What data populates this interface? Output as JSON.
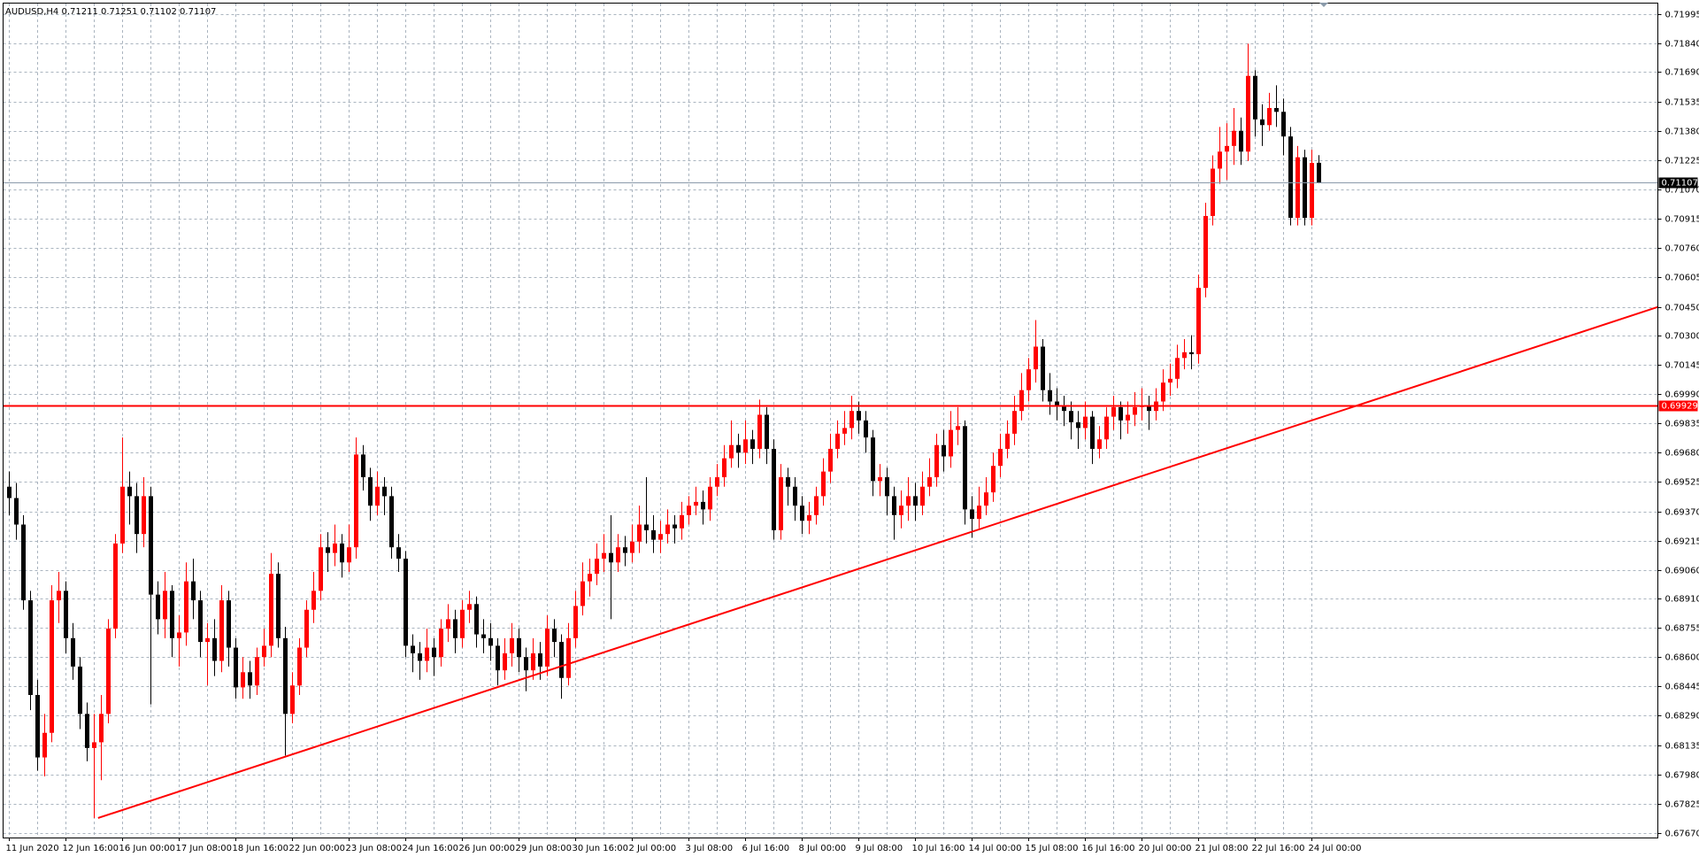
{
  "chart_data": {
    "type": "candlestick",
    "title": "AUDUSD,H4  0.71211 0.71251 0.71102 0.71107",
    "up_color": "#ff0000",
    "down_color": "#000000",
    "grid": true,
    "categories": [
      "11 Jun 2020",
      null,
      null,
      null,
      null,
      null,
      null,
      null,
      "12 Jun 16:00",
      null,
      null,
      null,
      null,
      null,
      null,
      null,
      "16 Jun 00:00",
      null,
      null,
      null,
      null,
      null,
      null,
      null,
      "17 Jun 08:00",
      null,
      null,
      null,
      null,
      null,
      null,
      null,
      "18 Jun 16:00",
      null,
      null,
      null,
      null,
      null,
      null,
      null,
      "22 Jun 00:00",
      null,
      null,
      null,
      null,
      null,
      null,
      null,
      "23 Jun 08:00",
      null,
      null,
      null,
      null,
      null,
      null,
      null,
      "24 Jun 16:00",
      null,
      null,
      null,
      null,
      null,
      null,
      null,
      "26 Jun 00:00",
      null,
      null,
      null,
      null,
      null,
      null,
      null,
      "29 Jun 08:00",
      null,
      null,
      null,
      null,
      null,
      null,
      null,
      "30 Jun 16:00",
      null,
      null,
      null,
      null,
      null,
      null,
      null,
      "2 Jul 00:00",
      null,
      null,
      null,
      null,
      null,
      null,
      null,
      "3 Jul 08:00",
      null,
      null,
      null,
      null,
      null,
      null,
      null,
      "6 Jul 16:00",
      null,
      null,
      null,
      null,
      null,
      null,
      null,
      "8 Jul 00:00",
      null,
      null,
      null,
      null,
      null,
      null,
      null,
      "9 Jul 08:00",
      null,
      null,
      null,
      null,
      null,
      null,
      null,
      "10 Jul 16:00",
      null,
      null,
      null,
      null,
      null,
      null,
      null,
      "14 Jul 00:00",
      null,
      null,
      null,
      null,
      null,
      null,
      null,
      "15 Jul 08:00",
      null,
      null,
      null,
      null,
      null,
      null,
      null,
      "16 Jul 16:00",
      null,
      null,
      null,
      null,
      null,
      null,
      null,
      "20 Jul 00:00",
      null,
      null,
      null,
      null,
      null,
      null,
      null,
      "21 Jul 08:00",
      null,
      null,
      null,
      null,
      null,
      null,
      null,
      "22 Jul 16:00",
      null,
      null,
      null,
      null,
      null,
      null,
      null,
      "24 Jul 00:00",
      null
    ],
    "open": [
      0.695,
      0.6944,
      0.693,
      0.689,
      0.684,
      0.6807,
      0.682,
      0.689,
      0.6895,
      0.687,
      0.6855,
      0.683,
      0.6812,
      0.6815,
      0.683,
      0.6875,
      0.692,
      0.695,
      0.6945,
      0.6925,
      0.6945,
      0.6893,
      0.688,
      0.6895,
      0.687,
      0.6873,
      0.69,
      0.689,
      0.6868,
      0.687,
      0.6858,
      0.689,
      0.6865,
      0.6844,
      0.6852,
      0.6845,
      0.686,
      0.6866,
      0.6904,
      0.687,
      0.683,
      0.6845,
      0.6865,
      0.6885,
      0.6895,
      0.6918,
      0.6915,
      0.692,
      0.691,
      0.6918,
      0.6967,
      0.6955,
      0.694,
      0.695,
      0.6945,
      0.6918,
      0.6912,
      0.6866,
      0.6862,
      0.6858,
      0.6865,
      0.686,
      0.6875,
      0.688,
      0.687,
      0.6885,
      0.6888,
      0.6872,
      0.687,
      0.6866,
      0.6853,
      0.6862,
      0.687,
      0.686,
      0.6853,
      0.6862,
      0.6855,
      0.6875,
      0.6868,
      0.6849,
      0.687,
      0.6887,
      0.69,
      0.6904,
      0.6912,
      0.6915,
      0.691,
      0.6918,
      0.6915,
      0.6921,
      0.693,
      0.6927,
      0.6922,
      0.6925,
      0.693,
      0.6928,
      0.6935,
      0.694,
      0.6942,
      0.6938,
      0.695,
      0.6955,
      0.6965,
      0.6972,
      0.6968,
      0.6975,
      0.697,
      0.6988,
      0.697,
      0.6927,
      0.6955,
      0.695,
      0.694,
      0.6932,
      0.6935,
      0.6945,
      0.6958,
      0.697,
      0.6978,
      0.6981,
      0.699,
      0.6985,
      0.6976,
      0.6953,
      0.6955,
      0.6945,
      0.6935,
      0.694,
      0.6945,
      0.694,
      0.695,
      0.6955,
      0.6972,
      0.6966,
      0.698,
      0.6982,
      0.6938,
      0.6933,
      0.694,
      0.6947,
      0.6961,
      0.697,
      0.6978,
      0.699,
      0.7001,
      0.7012,
      0.7024,
      0.7001,
      0.6995,
      0.6993,
      0.699,
      0.6984,
      0.6981,
      0.6987,
      0.697,
      0.6975,
      0.6987,
      0.6992,
      0.6985,
      0.6988,
      0.6992,
      0.6993,
      0.699,
      0.6995,
      0.7005,
      0.7007,
      0.7018,
      0.7021,
      0.702,
      0.7055,
      0.7093,
      0.7118,
      0.7127,
      0.713,
      0.7138,
      0.7127,
      0.7167,
      0.7144,
      0.7141,
      0.715,
      0.7148,
      0.7135,
      0.7092,
      0.7124,
      0.7092,
      0.71211
    ],
    "high": [
      0.6958,
      0.6952,
      0.6935,
      0.6895,
      0.6848,
      0.683,
      0.6898,
      0.6905,
      0.69,
      0.6878,
      0.686,
      0.6836,
      0.683,
      0.684,
      0.688,
      0.6925,
      0.6976,
      0.6958,
      0.6952,
      0.6955,
      0.695,
      0.69,
      0.6905,
      0.6898,
      0.6882,
      0.691,
      0.6912,
      0.6895,
      0.6878,
      0.688,
      0.6898,
      0.6895,
      0.687,
      0.686,
      0.6858,
      0.6865,
      0.6875,
      0.6915,
      0.691,
      0.6876,
      0.6852,
      0.687,
      0.689,
      0.6905,
      0.6925,
      0.6926,
      0.693,
      0.6925,
      0.693,
      0.6976,
      0.6972,
      0.696,
      0.6958,
      0.6955,
      0.695,
      0.6925,
      0.6916,
      0.6872,
      0.6868,
      0.6875,
      0.687,
      0.688,
      0.6888,
      0.6885,
      0.689,
      0.6895,
      0.6892,
      0.688,
      0.6878,
      0.687,
      0.687,
      0.6878,
      0.6875,
      0.6865,
      0.687,
      0.6868,
      0.6882,
      0.688,
      0.6872,
      0.6878,
      0.6895,
      0.691,
      0.6912,
      0.692,
      0.6925,
      0.6935,
      0.6925,
      0.6924,
      0.693,
      0.694,
      0.6955,
      0.6935,
      0.6932,
      0.6938,
      0.6935,
      0.6942,
      0.6945,
      0.695,
      0.6948,
      0.6955,
      0.6962,
      0.6972,
      0.6985,
      0.6978,
      0.6985,
      0.698,
      0.6996,
      0.6992,
      0.6975,
      0.6962,
      0.696,
      0.6955,
      0.6945,
      0.6942,
      0.695,
      0.6965,
      0.6978,
      0.6985,
      0.699,
      0.6998,
      0.6995,
      0.699,
      0.698,
      0.6962,
      0.696,
      0.695,
      0.6948,
      0.6955,
      0.6952,
      0.6958,
      0.6965,
      0.6978,
      0.698,
      0.699,
      0.6992,
      0.6985,
      0.6945,
      0.695,
      0.6955,
      0.6968,
      0.6978,
      0.6985,
      0.6998,
      0.701,
      0.7018,
      0.7038,
      0.7028,
      0.701,
      0.7002,
      0.6998,
      0.6995,
      0.699,
      0.6995,
      0.699,
      0.6982,
      0.6992,
      0.6998,
      0.6995,
      0.6995,
      0.7,
      0.7002,
      0.6998,
      0.7002,
      0.7012,
      0.7015,
      0.7025,
      0.7028,
      0.703,
      0.7062,
      0.71,
      0.7125,
      0.714,
      0.7142,
      0.715,
      0.7145,
      0.7184,
      0.717,
      0.7152,
      0.7158,
      0.7162,
      0.7155,
      0.714,
      0.713,
      0.7128,
      0.7128,
      0.71251
    ],
    "low": [
      0.6935,
      0.6922,
      0.6885,
      0.6832,
      0.68,
      0.6797,
      0.6815,
      0.6878,
      0.6862,
      0.6848,
      0.6822,
      0.6805,
      0.6775,
      0.6795,
      0.6825,
      0.687,
      0.6915,
      0.693,
      0.6915,
      0.6918,
      0.6835,
      0.6872,
      0.687,
      0.686,
      0.6855,
      0.6866,
      0.688,
      0.686,
      0.6845,
      0.685,
      0.6852,
      0.6855,
      0.6838,
      0.6838,
      0.6838,
      0.684,
      0.6855,
      0.686,
      0.6865,
      0.6808,
      0.6825,
      0.684,
      0.686,
      0.6878,
      0.689,
      0.6905,
      0.6908,
      0.6902,
      0.6905,
      0.6912,
      0.6948,
      0.6932,
      0.6935,
      0.6935,
      0.6912,
      0.6905,
      0.686,
      0.6852,
      0.6848,
      0.6852,
      0.685,
      0.6855,
      0.6868,
      0.6862,
      0.6865,
      0.6878,
      0.6865,
      0.6862,
      0.6858,
      0.6845,
      0.6848,
      0.6855,
      0.6852,
      0.6842,
      0.6848,
      0.6848,
      0.685,
      0.686,
      0.6838,
      0.6845,
      0.6865,
      0.6882,
      0.6892,
      0.6898,
      0.6905,
      0.688,
      0.6905,
      0.6908,
      0.691,
      0.6915,
      0.692,
      0.6915,
      0.6915,
      0.692,
      0.692,
      0.6922,
      0.693,
      0.6935,
      0.693,
      0.6932,
      0.6945,
      0.695,
      0.696,
      0.696,
      0.6962,
      0.6962,
      0.6965,
      0.6962,
      0.6922,
      0.6922,
      0.694,
      0.6932,
      0.6925,
      0.6925,
      0.693,
      0.694,
      0.6952,
      0.6965,
      0.6972,
      0.6975,
      0.6978,
      0.6968,
      0.6945,
      0.6945,
      0.6935,
      0.6922,
      0.6928,
      0.6932,
      0.6932,
      0.6935,
      0.6945,
      0.695,
      0.6958,
      0.696,
      0.6972,
      0.693,
      0.6923,
      0.6928,
      0.6935,
      0.6942,
      0.6955,
      0.6965,
      0.6972,
      0.6985,
      0.6995,
      0.7005,
      0.6995,
      0.6988,
      0.6985,
      0.6982,
      0.6975,
      0.697,
      0.6975,
      0.6962,
      0.6965,
      0.697,
      0.698,
      0.6975,
      0.6978,
      0.6982,
      0.6985,
      0.698,
      0.6985,
      0.699,
      0.6998,
      0.7002,
      0.7012,
      0.7012,
      0.7015,
      0.705,
      0.7088,
      0.711,
      0.7112,
      0.712,
      0.712,
      0.7122,
      0.7135,
      0.713,
      0.7138,
      0.714,
      0.7125,
      0.7088,
      0.7088,
      0.7088,
      0.7088,
      0.71102
    ],
    "close": [
      0.6944,
      0.693,
      0.689,
      0.684,
      0.6807,
      0.682,
      0.689,
      0.6895,
      0.687,
      0.6855,
      0.683,
      0.6812,
      0.6815,
      0.683,
      0.6875,
      0.692,
      0.695,
      0.6945,
      0.6925,
      0.6945,
      0.6893,
      0.688,
      0.6895,
      0.687,
      0.6873,
      0.69,
      0.689,
      0.6868,
      0.687,
      0.6858,
      0.689,
      0.6865,
      0.6844,
      0.6852,
      0.6845,
      0.686,
      0.6866,
      0.6904,
      0.687,
      0.683,
      0.6845,
      0.6865,
      0.6885,
      0.6895,
      0.6918,
      0.6915,
      0.692,
      0.691,
      0.6918,
      0.6967,
      0.6955,
      0.694,
      0.695,
      0.6945,
      0.6918,
      0.6912,
      0.6866,
      0.6862,
      0.6858,
      0.6865,
      0.686,
      0.6875,
      0.688,
      0.687,
      0.6885,
      0.6888,
      0.6872,
      0.687,
      0.6866,
      0.6853,
      0.6862,
      0.687,
      0.686,
      0.6853,
      0.6862,
      0.6855,
      0.6875,
      0.6868,
      0.6849,
      0.687,
      0.6887,
      0.69,
      0.6904,
      0.6912,
      0.6915,
      0.691,
      0.6918,
      0.6915,
      0.6921,
      0.693,
      0.6927,
      0.6922,
      0.6925,
      0.693,
      0.6928,
      0.6935,
      0.694,
      0.6942,
      0.6938,
      0.695,
      0.6955,
      0.6965,
      0.6972,
      0.6968,
      0.6975,
      0.697,
      0.6988,
      0.697,
      0.6927,
      0.6955,
      0.695,
      0.694,
      0.6932,
      0.6935,
      0.6945,
      0.6958,
      0.697,
      0.6978,
      0.6981,
      0.699,
      0.6985,
      0.6976,
      0.6953,
      0.6955,
      0.6945,
      0.6935,
      0.694,
      0.6945,
      0.694,
      0.695,
      0.6955,
      0.6972,
      0.6966,
      0.698,
      0.6982,
      0.6938,
      0.6933,
      0.694,
      0.6947,
      0.6961,
      0.697,
      0.6978,
      0.699,
      0.7001,
      0.7012,
      0.7024,
      0.7001,
      0.6995,
      0.6993,
      0.699,
      0.6984,
      0.6981,
      0.6987,
      0.697,
      0.6975,
      0.6987,
      0.6992,
      0.6985,
      0.6988,
      0.6992,
      0.6993,
      0.699,
      0.6995,
      0.7005,
      0.7007,
      0.7018,
      0.7021,
      0.702,
      0.7055,
      0.7093,
      0.7118,
      0.7127,
      0.713,
      0.7138,
      0.7127,
      0.7167,
      0.7144,
      0.7141,
      0.715,
      0.7148,
      0.7135,
      0.7092,
      0.7124,
      0.7092,
      0.7121,
      0.71107
    ],
    "ylim": [
      0.67647,
      0.72052
    ],
    "yticks": [
      {
        "value": 0.6767,
        "label": "0.67670"
      },
      0.67825,
      {
        "value": 0.6798,
        "label": "0.67980"
      },
      0.68135,
      {
        "value": 0.6829,
        "label": "0.68290"
      },
      0.68445,
      {
        "value": 0.686,
        "label": "0.68600"
      },
      0.68755,
      {
        "value": 0.6891,
        "label": "0.68910"
      },
      {
        "value": 0.6906,
        "label": "0.69060"
      },
      0.69215,
      {
        "value": 0.6937,
        "label": "0.69370"
      },
      0.69525,
      {
        "value": 0.6968,
        "label": "0.69680"
      },
      0.69835,
      {
        "value": 0.6999,
        "label": "0.69990"
      },
      0.70145,
      {
        "value": 0.703,
        "label": "0.70300"
      },
      {
        "value": 0.7045,
        "label": "0.70450"
      },
      0.70605,
      {
        "value": 0.7076,
        "label": "0.70760"
      },
      0.70915,
      {
        "value": 0.7107,
        "label": "0.71070"
      },
      0.71225,
      {
        "value": 0.7138,
        "label": "0.71380"
      },
      0.71535,
      {
        "value": 0.7169,
        "label": "0.71690"
      },
      {
        "value": 0.7184,
        "label": "0.71840"
      },
      0.71995
    ],
    "hlines": [
      {
        "value": 0.69929,
        "color": "#ff0000",
        "label_color": "#ff0000"
      },
      {
        "value": 0.71107,
        "color": "#8a9aaa",
        "label_color": "#000000"
      }
    ],
    "trendline": {
      "x": [
        12.6,
        233
      ],
      "y": [
        0.6775,
        0.7045
      ],
      "color": "#ff0000"
    }
  }
}
